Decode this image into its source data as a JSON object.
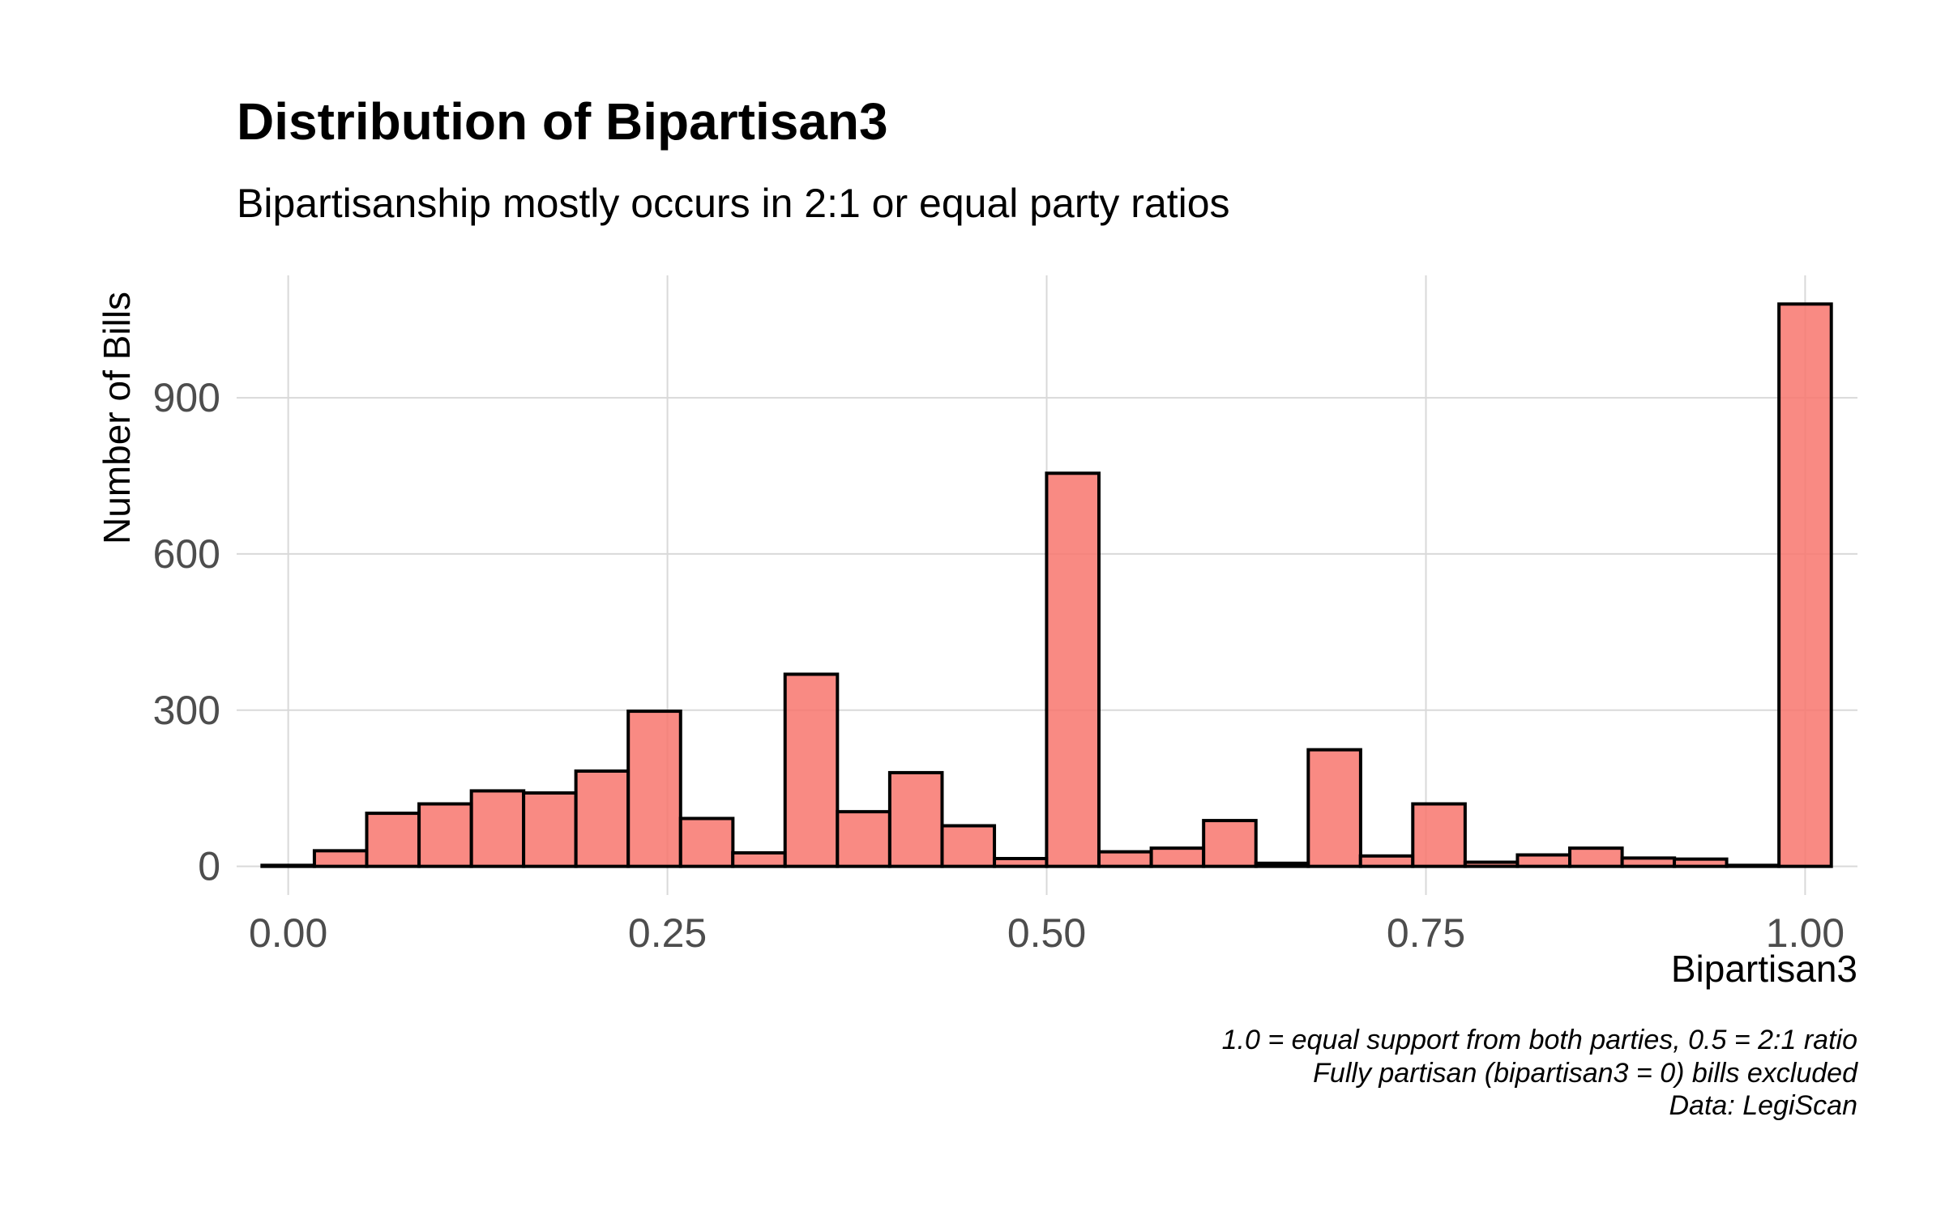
{
  "chart_data": {
    "type": "bar",
    "title": "Distribution of Bipartisan3",
    "subtitle": "Bipartisanship mostly occurs in 2:1 or equal party ratios",
    "xlabel": "Bipartisan3",
    "ylabel": "Number of Bills",
    "caption": [
      "1.0 = equal support from both parties, 0.5 = 2:1 ratio",
      "Fully partisan (bipartisan3 = 0) bills excluded",
      "Data: LegiScan"
    ],
    "x_tick_labels": [
      "0.00",
      "0.25",
      "0.50",
      "0.75",
      "1.00"
    ],
    "x_ticks": [
      0,
      0.25,
      0.5,
      0.75,
      1.0
    ],
    "y_tick_labels": [
      "0",
      "300",
      "600",
      "900"
    ],
    "y_ticks": [
      0,
      300,
      600,
      900
    ],
    "xlim": [
      -0.034,
      1.0345
    ],
    "ylim": [
      -55,
      1135
    ],
    "bin_width": 0.0345,
    "bin_centers": [
      0.0,
      0.0345,
      0.069,
      0.1035,
      0.138,
      0.1724,
      0.2069,
      0.2414,
      0.2759,
      0.3103,
      0.3448,
      0.3793,
      0.4138,
      0.4483,
      0.4828,
      0.5172,
      0.5517,
      0.5862,
      0.6207,
      0.6552,
      0.6897,
      0.7241,
      0.7586,
      0.7931,
      0.8276,
      0.8621,
      0.8966,
      0.931,
      0.9655,
      1.0
    ],
    "values": [
      2,
      30,
      102,
      120,
      145,
      141,
      183,
      298,
      92,
      26,
      369,
      105,
      180,
      78,
      15,
      755,
      28,
      35,
      88,
      6,
      224,
      20,
      120,
      8,
      22,
      35,
      16,
      14,
      2,
      1080
    ],
    "fill_color": "#f8766d",
    "fill_opacity": 0.85,
    "outline_color": "#000000",
    "grid": true
  }
}
